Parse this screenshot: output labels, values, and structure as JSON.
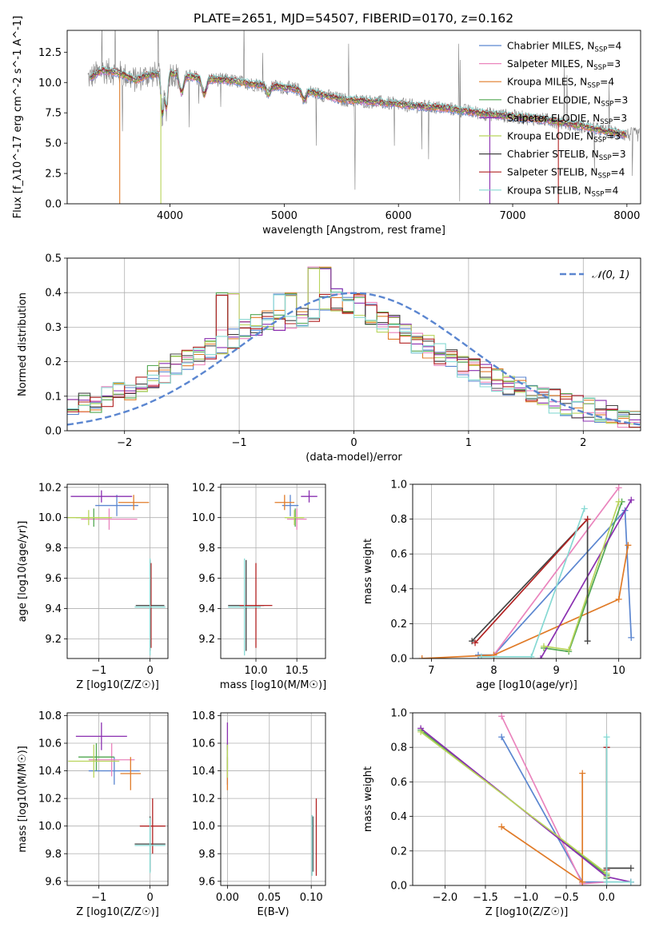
{
  "title": "PLATE=2651, MJD=54507, FIBERID=0170, z=0.162",
  "colors": {
    "models": [
      "#5b86d0",
      "#ea84bd",
      "#e07b28",
      "#52a852",
      "#8a2fb0",
      "#b8d45b",
      "#444444",
      "#b22222",
      "#86d9d3"
    ],
    "spectrum": "#7f7f7f",
    "normal": "#5b86d0",
    "grid": "#b0b0b0"
  },
  "legend": {
    "models": [
      "Chabrier MILES, N$_{SSP}$=4",
      "Salpeter MILES, N$_{SSP}$=3",
      "Kroupa MILES, N$_{SSP}$=4",
      "Chabrier ELODIE, N$_{SSP}$=3",
      "Salpeter ELODIE, N$_{SSP}$=3",
      "Kroupa ELODIE, N$_{SSP}$=3",
      "Chabrier STELIB, N$_{SSP}$=3",
      "Salpeter STELIB, N$_{SSP}$=4",
      "Kroupa STELIB, N$_{SSP}$=4"
    ],
    "models_display": [
      {
        "pre": "Chabrier MILES, N",
        "sub": "SSP",
        "post": "=4"
      },
      {
        "pre": "Salpeter MILES, N",
        "sub": "SSP",
        "post": "=3"
      },
      {
        "pre": "Kroupa MILES, N",
        "sub": "SSP",
        "post": "=4"
      },
      {
        "pre": "Chabrier ELODIE, N",
        "sub": "SSP",
        "post": "=3"
      },
      {
        "pre": "Salpeter ELODIE, N",
        "sub": "SSP",
        "post": "=3"
      },
      {
        "pre": "Kroupa ELODIE, N",
        "sub": "SSP",
        "post": "=3"
      },
      {
        "pre": "Chabrier STELIB, N",
        "sub": "SSP",
        "post": "=3"
      },
      {
        "pre": "Salpeter STELIB, N",
        "sub": "SSP",
        "post": "=4"
      },
      {
        "pre": "Kroupa STELIB, N",
        "sub": "SSP",
        "post": "=4"
      }
    ],
    "normal_label": "𝒩(0, 1)"
  },
  "chart_data": [
    {
      "id": "spectrum",
      "type": "line",
      "xlabel": "wavelength [Angstrom, rest frame]",
      "ylabel": "Flux [f_λ10^-17 erg cm^-2 s^-1 A^-1]",
      "xlim": [
        3100,
        8120
      ],
      "ylim": [
        0,
        14.3
      ],
      "xticks": [
        4000,
        5000,
        6000,
        7000,
        8000
      ],
      "yticks": [
        0.0,
        2.5,
        5.0,
        7.5,
        10.0,
        12.5
      ],
      "continuum": [
        [
          3300,
          10.4
        ],
        [
          3400,
          11.0
        ],
        [
          3550,
          10.8
        ],
        [
          3700,
          10.2
        ],
        [
          3800,
          10.6
        ],
        [
          3900,
          10.7
        ],
        [
          4000,
          10.8
        ],
        [
          4100,
          10.6
        ],
        [
          4300,
          10.3
        ],
        [
          4500,
          10.2
        ],
        [
          4700,
          9.9
        ],
        [
          5000,
          9.6
        ],
        [
          5200,
          9.3
        ],
        [
          5500,
          8.6
        ],
        [
          5800,
          8.4
        ],
        [
          6100,
          8.1
        ],
        [
          6400,
          7.9
        ],
        [
          6700,
          7.5
        ],
        [
          7000,
          7.2
        ],
        [
          7300,
          6.9
        ],
        [
          7600,
          6.4
        ],
        [
          7800,
          6.0
        ],
        [
          8000,
          5.7
        ]
      ],
      "absorption_features": [
        [
          3934,
          7.4
        ],
        [
          3969,
          7.9
        ],
        [
          4102,
          9.2
        ],
        [
          4300,
          9.0
        ],
        [
          4861,
          9.1
        ],
        [
          5175,
          8.6
        ]
      ],
      "model_dropouts": [
        {
          "x": 3560,
          "series": 2
        },
        {
          "x": 3920,
          "series": 5
        },
        {
          "x": 6800,
          "series": 4
        },
        {
          "x": 7400,
          "series": 7
        }
      ]
    },
    {
      "id": "residuals",
      "type": "histogram",
      "xlabel": "(data-model)/error",
      "ylabel": "Normed distribution",
      "xlim": [
        -2.5,
        2.5
      ],
      "ylim": [
        0,
        0.5
      ],
      "xticks": [
        -2,
        -1,
        0,
        1,
        2
      ],
      "yticks": [
        0.0,
        0.1,
        0.2,
        0.3,
        0.4,
        0.5
      ],
      "bin_width": 0.1,
      "envelope": [
        [
          -2.5,
          0.06
        ],
        [
          -2.0,
          0.11
        ],
        [
          -1.6,
          0.18
        ],
        [
          -1.2,
          0.25
        ],
        [
          -0.8,
          0.31
        ],
        [
          -0.4,
          0.34
        ],
        [
          -0.2,
          0.38
        ],
        [
          0.0,
          0.37
        ],
        [
          0.3,
          0.31
        ],
        [
          0.6,
          0.25
        ],
        [
          1.0,
          0.18
        ],
        [
          1.4,
          0.13
        ],
        [
          1.8,
          0.08
        ],
        [
          2.2,
          0.05
        ],
        [
          2.5,
          0.03
        ]
      ],
      "highlight_peaks": [
        [
          -0.3,
          0.475
        ],
        [
          -1.1,
          0.4
        ],
        [
          -0.6,
          0.4
        ],
        [
          0.0,
          0.4
        ]
      ],
      "normal_mean": 0,
      "normal_sigma": 1
    },
    {
      "id": "age-vs-Z",
      "type": "errorbar",
      "xlabel": "Z [log10(Z/Z☉)]",
      "ylabel": "age  [log10(age/yr)]",
      "xlim": [
        -1.62,
        0.35
      ],
      "ylim": [
        9.07,
        10.22
      ],
      "xticks": [
        -1,
        0
      ],
      "yticks": [
        9.2,
        9.4,
        9.6,
        9.8,
        10.0,
        10.2
      ],
      "points": [
        {
          "s": 0,
          "x": -0.65,
          "y": 10.08,
          "ex": 0.42,
          "ey": 0.07
        },
        {
          "s": 1,
          "x": -0.8,
          "y": 9.99,
          "ex": 0.55,
          "ey": 0.07
        },
        {
          "s": 2,
          "x": -0.32,
          "y": 10.1,
          "ex": 0.3,
          "ey": 0.05
        },
        {
          "s": 3,
          "x": -1.1,
          "y": 10.0,
          "ex": 0.35,
          "ey": 0.06
        },
        {
          "s": 4,
          "x": -0.95,
          "y": 10.14,
          "ex": 0.6,
          "ey": 0.04
        },
        {
          "s": 5,
          "x": -1.2,
          "y": 10.0,
          "ex": 0.45,
          "ey": 0.05
        },
        {
          "s": 6,
          "x": 0.0,
          "y": 9.42,
          "ex": 0.28,
          "ey": 0.3
        },
        {
          "s": 7,
          "x": 0.02,
          "y": 9.42,
          "ex": 0.0,
          "ey": 0.28
        },
        {
          "s": 8,
          "x": 0.0,
          "y": 9.41,
          "ex": 0.3,
          "ey": 0.32
        }
      ]
    },
    {
      "id": "age-vs-mass",
      "type": "errorbar",
      "xlabel": "mass [log10(M/M☉)]",
      "ylabel": "",
      "xlim": [
        9.57,
        10.85
      ],
      "ylim": [
        9.07,
        10.22
      ],
      "xticks": [
        10.0,
        10.5
      ],
      "yticks": [
        9.2,
        9.4,
        9.6,
        9.8,
        10.0,
        10.2
      ],
      "points": [
        {
          "s": 0,
          "x": 10.42,
          "y": 10.08,
          "ex": 0.1,
          "ey": 0.07
        },
        {
          "s": 1,
          "x": 10.5,
          "y": 9.99,
          "ex": 0.12,
          "ey": 0.07
        },
        {
          "s": 2,
          "x": 10.35,
          "y": 10.1,
          "ex": 0.12,
          "ey": 0.05
        },
        {
          "s": 3,
          "x": 10.48,
          "y": 10.0,
          "ex": 0.1,
          "ey": 0.06
        },
        {
          "s": 4,
          "x": 10.65,
          "y": 10.14,
          "ex": 0.1,
          "ey": 0.04
        },
        {
          "s": 5,
          "x": 10.47,
          "y": 10.0,
          "ex": 0.12,
          "ey": 0.05
        },
        {
          "s": 6,
          "x": 9.88,
          "y": 9.42,
          "ex": 0.22,
          "ey": 0.3
        },
        {
          "s": 7,
          "x": 10.0,
          "y": 9.42,
          "ex": 0.2,
          "ey": 0.28
        },
        {
          "s": 8,
          "x": 9.86,
          "y": 9.41,
          "ex": 0.2,
          "ey": 0.32
        }
      ]
    },
    {
      "id": "massweight-vs-age",
      "type": "line",
      "xlabel": "age  [log10(age/yr)]",
      "ylabel": "mass weight",
      "xlim": [
        6.7,
        10.35
      ],
      "ylim": [
        0,
        1.0
      ],
      "xticks": [
        7,
        8,
        9,
        10
      ],
      "yticks": [
        0.0,
        0.2,
        0.4,
        0.6,
        0.8,
        1.0
      ],
      "series": [
        {
          "s": 0,
          "points": [
            [
              7.75,
              0.02
            ],
            [
              8.0,
              0.02
            ],
            [
              10.1,
              0.85
            ],
            [
              10.2,
              0.12
            ]
          ]
        },
        {
          "s": 1,
          "points": [
            [
              7.8,
              0.01
            ],
            [
              8.0,
              0.02
            ],
            [
              10.0,
              0.98
            ]
          ]
        },
        {
          "s": 2,
          "points": [
            [
              6.85,
              0.0
            ],
            [
              8.0,
              0.02
            ],
            [
              10.0,
              0.34
            ],
            [
              10.15,
              0.65
            ]
          ]
        },
        {
          "s": 3,
          "points": [
            [
              8.8,
              0.06
            ],
            [
              9.2,
              0.04
            ],
            [
              10.05,
              0.9
            ]
          ]
        },
        {
          "s": 4,
          "points": [
            [
              8.75,
              0.0
            ],
            [
              10.2,
              0.91
            ]
          ]
        },
        {
          "s": 5,
          "points": [
            [
              8.8,
              0.07
            ],
            [
              9.2,
              0.05
            ],
            [
              10.0,
              0.9
            ]
          ]
        },
        {
          "s": 6,
          "points": [
            [
              7.65,
              0.1
            ],
            [
              9.5,
              0.8
            ],
            [
              9.5,
              0.1
            ]
          ]
        },
        {
          "s": 7,
          "points": [
            [
              7.7,
              0.09
            ],
            [
              9.5,
              0.8
            ]
          ]
        },
        {
          "s": 8,
          "points": [
            [
              7.8,
              0.01
            ],
            [
              8.6,
              0.01
            ],
            [
              9.45,
              0.86
            ]
          ]
        }
      ]
    },
    {
      "id": "mass-vs-Z",
      "type": "errorbar",
      "xlabel": "Z [log10(Z/Z☉)]",
      "ylabel": "mass [log10(M/M☉)]",
      "xlim": [
        -1.62,
        0.35
      ],
      "ylim": [
        9.57,
        10.82
      ],
      "xticks": [
        -1,
        0
      ],
      "yticks": [
        9.6,
        9.8,
        10.0,
        10.2,
        10.4,
        10.6,
        10.8
      ],
      "points": [
        {
          "s": 0,
          "x": -0.7,
          "y": 10.4,
          "ex": 0.5,
          "ey": 0.1
        },
        {
          "s": 1,
          "x": -0.75,
          "y": 10.48,
          "ex": 0.45,
          "ey": 0.12
        },
        {
          "s": 2,
          "x": -0.38,
          "y": 10.38,
          "ex": 0.2,
          "ey": 0.12
        },
        {
          "s": 3,
          "x": -1.05,
          "y": 10.5,
          "ex": 0.35,
          "ey": 0.1
        },
        {
          "s": 4,
          "x": -0.95,
          "y": 10.65,
          "ex": 0.5,
          "ey": 0.1
        },
        {
          "s": 5,
          "x": -1.1,
          "y": 10.47,
          "ex": 0.5,
          "ey": 0.12
        },
        {
          "s": 6,
          "x": 0.0,
          "y": 9.87,
          "ex": 0.3,
          "ey": 0.2
        },
        {
          "s": 7,
          "x": 0.05,
          "y": 10.0,
          "ex": 0.25,
          "ey": 0.2
        },
        {
          "s": 8,
          "x": 0.0,
          "y": 9.86,
          "ex": 0.3,
          "ey": 0.2
        }
      ]
    },
    {
      "id": "mass-vs-EBV",
      "type": "errorbar",
      "xlabel": "E(B-V)",
      "ylabel": "",
      "xlim": [
        -0.008,
        0.117
      ],
      "ylim": [
        9.57,
        10.82
      ],
      "xticks": [
        0.0,
        0.05,
        0.1
      ],
      "yticks": [
        9.6,
        9.8,
        10.0,
        10.2,
        10.4,
        10.6,
        10.8
      ],
      "points": [
        {
          "s": 0,
          "x": 0.0,
          "y": 10.4,
          "ex": 0.0,
          "ey": 0.1
        },
        {
          "s": 1,
          "x": 0.0,
          "y": 10.48,
          "ex": 0.0,
          "ey": 0.12
        },
        {
          "s": 2,
          "x": 0.0,
          "y": 10.38,
          "ex": 0.0,
          "ey": 0.12
        },
        {
          "s": 3,
          "x": 0.0,
          "y": 10.5,
          "ex": 0.0,
          "ey": 0.1
        },
        {
          "s": 4,
          "x": 0.0,
          "y": 10.65,
          "ex": 0.0,
          "ey": 0.1
        },
        {
          "s": 5,
          "x": 0.0,
          "y": 10.47,
          "ex": 0.0,
          "ey": 0.12
        },
        {
          "s": 6,
          "x": 0.102,
          "y": 9.87,
          "ex": 0.0,
          "ey": 0.2
        },
        {
          "s": 7,
          "x": 0.106,
          "y": 9.92,
          "ex": 0.0,
          "ey": 0.28
        },
        {
          "s": 8,
          "x": 0.101,
          "y": 9.86,
          "ex": 0.0,
          "ey": 0.22
        }
      ]
    },
    {
      "id": "massweight-vs-Z",
      "type": "line",
      "xlabel": "Z [log10(Z/Z☉)]",
      "ylabel": "mass weight",
      "xlim": [
        -2.4,
        0.42
      ],
      "ylim": [
        0,
        1.0
      ],
      "xticks": [
        -2.0,
        -1.5,
        -1.0,
        -0.5,
        0.0
      ],
      "yticks": [
        0.0,
        0.2,
        0.4,
        0.6,
        0.8,
        1.0
      ],
      "series": [
        {
          "s": 0,
          "points": [
            [
              -1.3,
              0.86
            ],
            [
              -0.3,
              0.02
            ],
            [
              0.0,
              0.02
            ],
            [
              0.3,
              0.02
            ]
          ]
        },
        {
          "s": 1,
          "points": [
            [
              -1.3,
              0.98
            ],
            [
              -0.3,
              0.01
            ],
            [
              0.0,
              0.02
            ]
          ]
        },
        {
          "s": 2,
          "points": [
            [
              -1.3,
              0.34
            ],
            [
              -0.3,
              0.02
            ],
            [
              -0.3,
              0.65
            ]
          ]
        },
        {
          "s": 3,
          "points": [
            [
              -2.3,
              0.9
            ],
            [
              0.0,
              0.06
            ],
            [
              0.0,
              0.04
            ]
          ]
        },
        {
          "s": 4,
          "points": [
            [
              -2.3,
              0.91
            ],
            [
              0.0,
              0.05
            ],
            [
              0.3,
              0.02
            ]
          ]
        },
        {
          "s": 5,
          "points": [
            [
              -2.3,
              0.89
            ],
            [
              0.0,
              0.07
            ],
            [
              0.0,
              0.05
            ]
          ]
        },
        {
          "s": 6,
          "points": [
            [
              0.0,
              0.8
            ],
            [
              0.0,
              0.1
            ],
            [
              0.3,
              0.1
            ]
          ]
        },
        {
          "s": 7,
          "points": [
            [
              0.0,
              0.09
            ],
            [
              0.0,
              0.8
            ]
          ]
        },
        {
          "s": 8,
          "points": [
            [
              0.0,
              0.86
            ],
            [
              0.0,
              0.02
            ],
            [
              0.3,
              0.02
            ]
          ]
        }
      ]
    }
  ]
}
